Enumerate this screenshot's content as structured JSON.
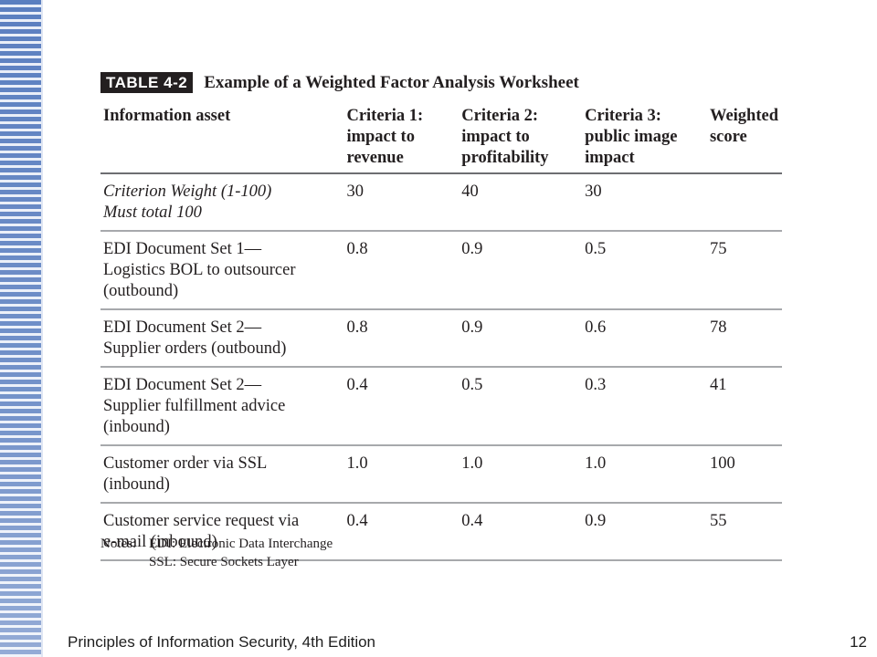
{
  "caption": {
    "tag": "TABLE 4-2",
    "title": "Example of a Weighted Factor Analysis Worksheet"
  },
  "table": {
    "headers": [
      [
        "Information asset"
      ],
      [
        "Criteria 1:",
        "impact to",
        "revenue"
      ],
      [
        "Criteria 2:",
        "impact to",
        "profitability"
      ],
      [
        "Criteria 3:",
        "public image",
        "impact"
      ],
      [
        "Weighted",
        "score"
      ]
    ],
    "weight_row": {
      "label": [
        "Criterion Weight (1-100)",
        "Must total 100"
      ],
      "c1": "30",
      "c2": "40",
      "c3": "30",
      "score": ""
    },
    "rows": [
      {
        "asset": [
          "EDI Document Set 1—",
          "Logistics BOL to outsourcer",
          "(outbound)"
        ],
        "c1": "0.8",
        "c2": "0.9",
        "c3": "0.5",
        "score": "75"
      },
      {
        "asset": [
          "EDI Document Set 2—",
          "Supplier orders (outbound)"
        ],
        "c1": "0.8",
        "c2": "0.9",
        "c3": "0.6",
        "score": "78"
      },
      {
        "asset": [
          "EDI Document Set 2—",
          "Supplier fulfillment advice",
          "(inbound)"
        ],
        "c1": "0.4",
        "c2": "0.5",
        "c3": "0.3",
        "score": "41"
      },
      {
        "asset": [
          "Customer order via SSL",
          "(inbound)"
        ],
        "c1": "1.0",
        "c2": "1.0",
        "c3": "1.0",
        "score": "100"
      },
      {
        "asset": [
          "Customer service request via",
          "e-mail (inbound)"
        ],
        "c1": "0.4",
        "c2": "0.4",
        "c3": "0.9",
        "score": "55"
      }
    ]
  },
  "notes": {
    "label": "Notes:",
    "lines": [
      "EDI: Electronic Data Interchange",
      "SSL: Secure Sockets Layer"
    ]
  },
  "footer": {
    "title": "Principles of Information Security, 4th Edition",
    "page": "12"
  },
  "colors": {
    "stripe_blue": "#5b7fc0",
    "stripe_light": "#e9eef8",
    "text": "#231f20"
  }
}
